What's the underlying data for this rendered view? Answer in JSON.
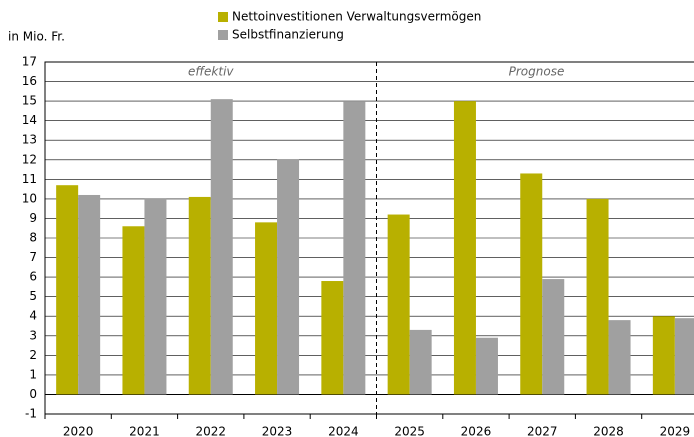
{
  "chart_data": {
    "type": "bar",
    "ylabel": "in Mio. Fr.",
    "categories": [
      "2020",
      "2021",
      "2022",
      "2023",
      "2024",
      "2025",
      "2026",
      "2027",
      "2028",
      "2029"
    ],
    "series": [
      {
        "name": "Nettoinvestitionen Verwaltungsvermögen",
        "color": "#b8b000",
        "values": [
          10.7,
          8.6,
          10.1,
          8.8,
          5.8,
          9.2,
          15.0,
          11.3,
          10.0,
          4.0
        ]
      },
      {
        "name": "Selbstfinanzierung",
        "color": "#a0a0a0",
        "values": [
          10.2,
          10.0,
          15.1,
          12.0,
          15.0,
          3.3,
          2.9,
          5.9,
          3.8,
          3.9
        ]
      }
    ],
    "annotations": [
      "effektiv",
      "Prognose"
    ],
    "ylim": [
      -1,
      17
    ],
    "yticks": [
      -1,
      0,
      1,
      2,
      3,
      4,
      5,
      6,
      7,
      8,
      9,
      10,
      11,
      12,
      13,
      14,
      15,
      16,
      17
    ],
    "grid": true
  }
}
